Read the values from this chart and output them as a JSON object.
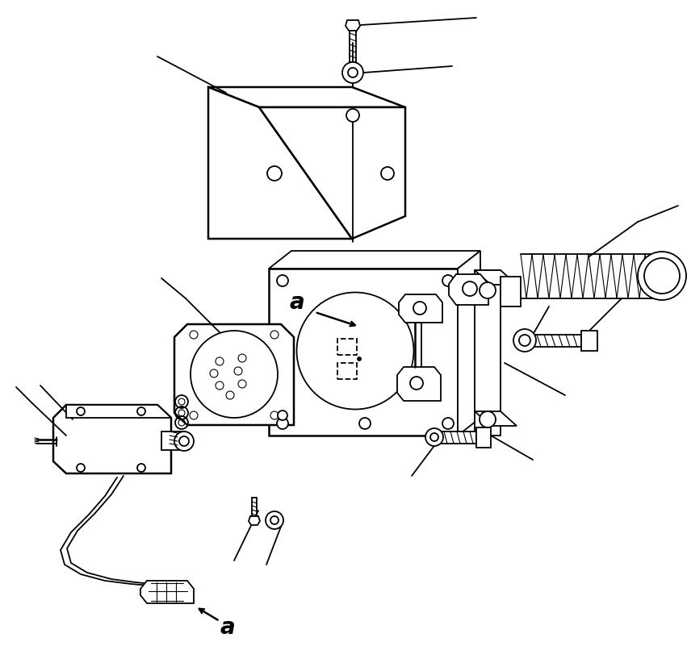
{
  "bg_color": "#ffffff",
  "line_color": "#000000",
  "lw": 1.3,
  "lw_thick": 1.8,
  "lw_thin": 0.8,
  "figsize": [
    8.51,
    8.27
  ],
  "dpi": 100,
  "xlim": [
    0,
    851
  ],
  "ylim": [
    0,
    827
  ]
}
